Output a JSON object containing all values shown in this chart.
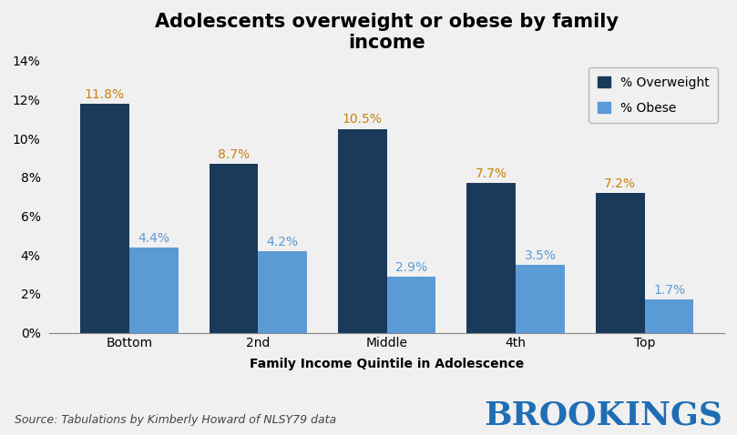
{
  "title": "Adolescents overweight or obese by family\nincome",
  "categories": [
    "Bottom",
    "2nd",
    "Middle",
    "4th",
    "Top"
  ],
  "overweight": [
    11.8,
    8.7,
    10.5,
    7.7,
    7.2
  ],
  "obese": [
    4.4,
    4.2,
    2.9,
    3.5,
    1.7
  ],
  "overweight_color": "#1a3a5c",
  "obese_color": "#5b9bd5",
  "overweight_label_color": "#c8820a",
  "obese_label_color": "#5b9bd5",
  "xlabel": "Family Income Quintile in Adolescence",
  "ylabel": "",
  "ylim": [
    0,
    14
  ],
  "yticks": [
    0,
    2,
    4,
    6,
    8,
    10,
    12,
    14
  ],
  "legend_labels": [
    "% Overweight",
    "% Obese"
  ],
  "source_text": "Source: Tabulations by Kimberly Howard of NLSY79 data",
  "brookings_text": "BROOKINGS",
  "bar_width": 0.38,
  "title_fontsize": 15,
  "label_fontsize": 10,
  "tick_fontsize": 10,
  "xlabel_fontsize": 10,
  "source_fontsize": 9,
  "brookings_fontsize": 26,
  "background_color": "#f0f0f0",
  "plot_bg_color": "#f0f0f0"
}
